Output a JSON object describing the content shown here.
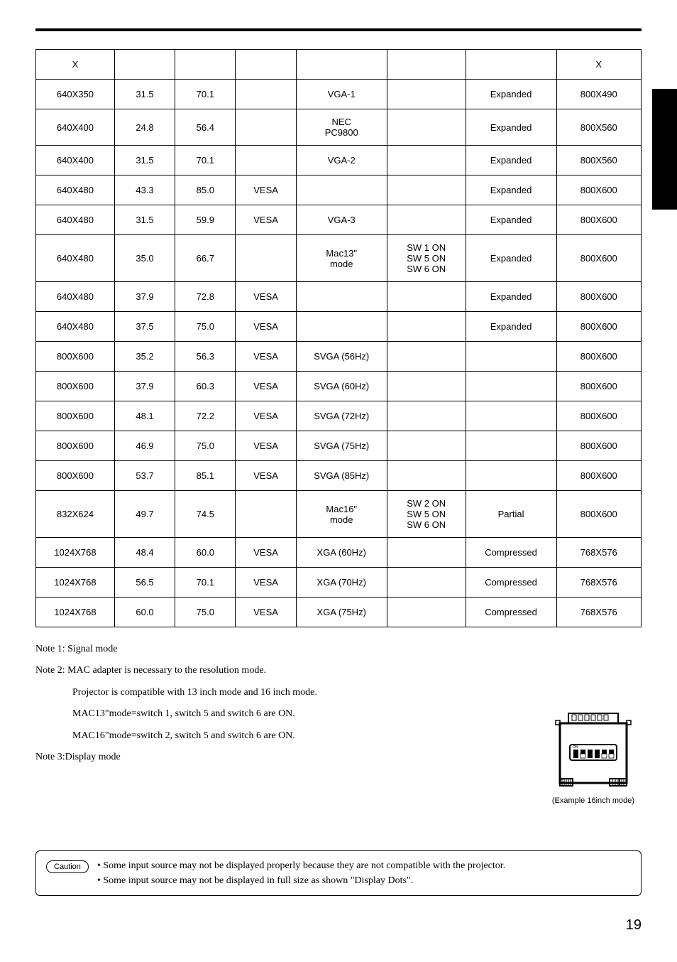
{
  "table": {
    "headers": [
      "X",
      "",
      "",
      "",
      "",
      "",
      "",
      "X"
    ],
    "rows": [
      {
        "cells": [
          "640X350",
          "31.5",
          "70.1",
          "",
          "VGA-1",
          "",
          "Expanded",
          "800X490"
        ],
        "tall": false
      },
      {
        "cells": [
          "640X400",
          "24.8",
          "56.4",
          "",
          "NEC PC9800",
          "",
          "Expanded",
          "800X560"
        ],
        "tall": false
      },
      {
        "cells": [
          "640X400",
          "31.5",
          "70.1",
          "",
          "VGA-2",
          "",
          "Expanded",
          "800X560"
        ],
        "tall": false
      },
      {
        "cells": [
          "640X480",
          "43.3",
          "85.0",
          "VESA",
          "",
          "",
          "Expanded",
          "800X600"
        ],
        "tall": false
      },
      {
        "cells": [
          "640X480",
          "31.5",
          "59.9",
          "VESA",
          "VGA-3",
          "",
          "Expanded",
          "800X600"
        ],
        "tall": false
      },
      {
        "cells": [
          "640X480",
          "35.0",
          "66.7",
          "",
          "Mac13\" mode",
          "SW 1 ON\nSW 5 ON\nSW 6 ON",
          "Expanded",
          "800X600"
        ],
        "tall": true
      },
      {
        "cells": [
          "640X480",
          "37.9",
          "72.8",
          "VESA",
          "",
          "",
          "Expanded",
          "800X600"
        ],
        "tall": false
      },
      {
        "cells": [
          "640X480",
          "37.5",
          "75.0",
          "VESA",
          "",
          "",
          "Expanded",
          "800X600"
        ],
        "tall": false
      },
      {
        "cells": [
          "800X600",
          "35.2",
          "56.3",
          "VESA",
          "SVGA (56Hz)",
          "",
          "",
          "800X600"
        ],
        "tall": false
      },
      {
        "cells": [
          "800X600",
          "37.9",
          "60.3",
          "VESA",
          "SVGA (60Hz)",
          "",
          "",
          "800X600"
        ],
        "tall": false
      },
      {
        "cells": [
          "800X600",
          "48.1",
          "72.2",
          "VESA",
          "SVGA (72Hz)",
          "",
          "",
          "800X600"
        ],
        "tall": false
      },
      {
        "cells": [
          "800X600",
          "46.9",
          "75.0",
          "VESA",
          "SVGA (75Hz)",
          "",
          "",
          "800X600"
        ],
        "tall": false
      },
      {
        "cells": [
          "800X600",
          "53.7",
          "85.1",
          "VESA",
          "SVGA (85Hz)",
          "",
          "",
          "800X600"
        ],
        "tall": false
      },
      {
        "cells": [
          "832X624",
          "49.7",
          "74.5",
          "",
          "Mac16\" mode",
          "SW 2 ON\nSW 5 ON\nSW 6 ON",
          "Partial",
          "800X600"
        ],
        "tall": true
      },
      {
        "cells": [
          "1024X768",
          "48.4",
          "60.0",
          "VESA",
          "XGA (60Hz)",
          "",
          "Compressed",
          "768X576"
        ],
        "tall": false
      },
      {
        "cells": [
          "1024X768",
          "56.5",
          "70.1",
          "VESA",
          "XGA (70Hz)",
          "",
          "Compressed",
          "768X576"
        ],
        "tall": false
      },
      {
        "cells": [
          "1024X768",
          "60.0",
          "75.0",
          "VESA",
          "XGA (75Hz)",
          "",
          "Compressed",
          "768X576"
        ],
        "tall": false
      }
    ],
    "col_widths": [
      "13%",
      "10%",
      "10%",
      "10%",
      "15%",
      "13%",
      "15%",
      "14%"
    ]
  },
  "notes": {
    "note1": "Note 1: Signal mode",
    "note2": "Note 2: MAC adapter is necessary to the resolution mode.",
    "note2a": "Projector is compatible with 13 inch mode and 16 inch mode.",
    "note2b": "MAC13\"mode=switch 1, switch 5 and switch 6 are ON.",
    "note2c": "MAC16\"mode=switch 2, switch 5 and switch 6 are ON.",
    "note3": "Note 3:Display mode"
  },
  "diagram": {
    "caption": "(Example 16inch mode)",
    "on_label": "ON"
  },
  "caution": {
    "label": "Caution",
    "text1": "• Some input source may not be displayed properly because they are not compatible with the projector.",
    "text2": "• Some input source may not be displayed in full size as shown \"Display Dots\"."
  },
  "page_number": "19",
  "colors": {
    "text": "#000000",
    "bg": "#ffffff",
    "border": "#000000"
  }
}
